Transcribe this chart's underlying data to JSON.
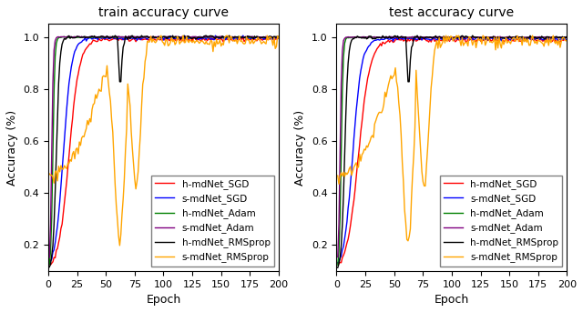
{
  "titles": [
    "train accuracy curve",
    "test accuracy curve"
  ],
  "xlabel": "Epoch",
  "ylabel": "Accuracy (%)",
  "xlim": [
    0,
    200
  ],
  "ylim": [
    0.1,
    1.05
  ],
  "xticks": [
    0,
    25,
    50,
    75,
    100,
    125,
    150,
    175,
    200
  ],
  "yticks": [
    0.2,
    0.4,
    0.6,
    0.8,
    1.0
  ],
  "legend_labels": [
    "h-mdNet_SGD",
    "s-mdNet_SGD",
    "h-mdNet_Adam",
    "s-mdNet_Adam",
    "h-mdNet_RMSprop",
    "s-mdNet_RMSprop"
  ],
  "colors": [
    "red",
    "blue",
    "green",
    "purple",
    "black",
    "orange"
  ],
  "figsize": [
    6.4,
    3.43
  ],
  "dpi": 100,
  "n_epochs": 200
}
